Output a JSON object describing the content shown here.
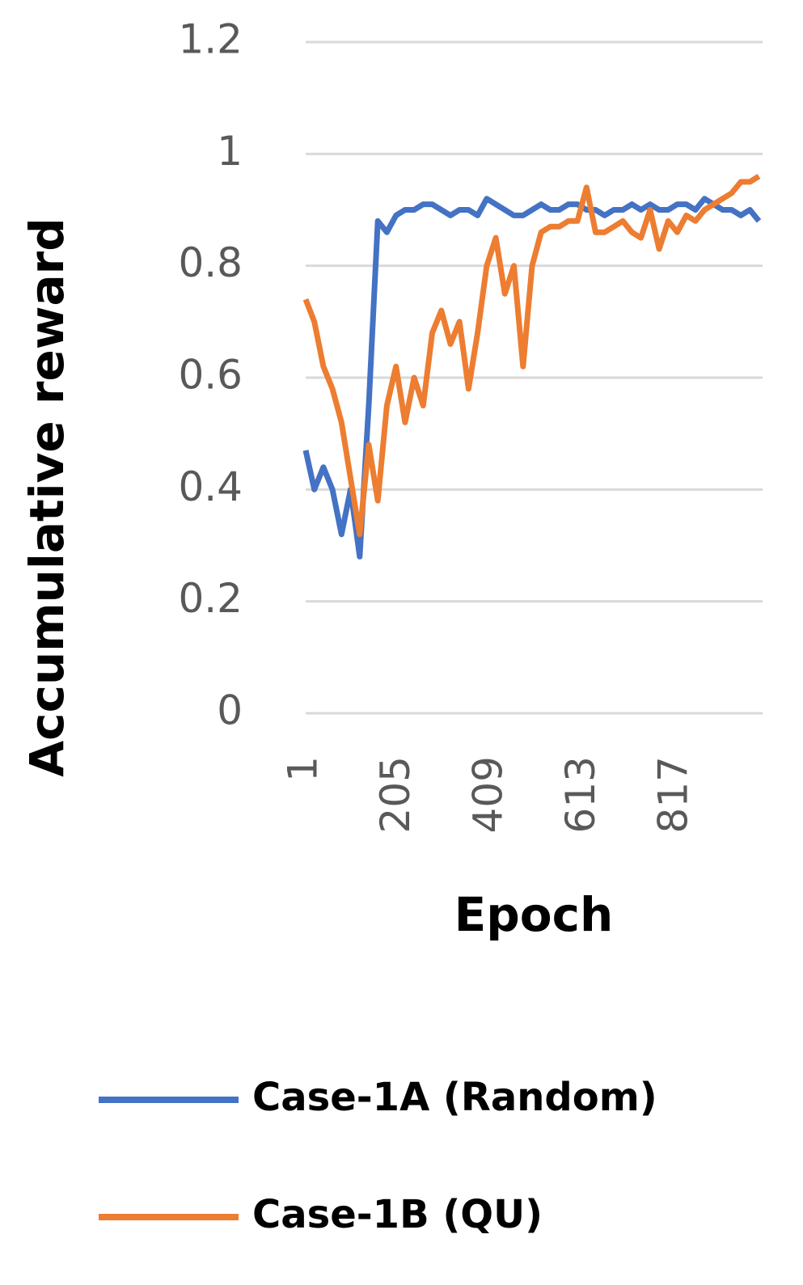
{
  "chart_data": {
    "type": "line",
    "x_label": "Epoch",
    "y_label": "Accumulative reward",
    "x": [
      1,
      20,
      40,
      60,
      80,
      100,
      120,
      140,
      160,
      180,
      200,
      220,
      240,
      260,
      280,
      300,
      320,
      340,
      360,
      380,
      400,
      420,
      440,
      460,
      480,
      500,
      520,
      540,
      560,
      580,
      600,
      620,
      640,
      660,
      680,
      700,
      720,
      740,
      760,
      780,
      800,
      820,
      840,
      860,
      880,
      900,
      920,
      940,
      960,
      980,
      1000
    ],
    "series": [
      {
        "name": "Case-1A (Random)",
        "color": "#4472c4",
        "values": [
          0.47,
          0.4,
          0.44,
          0.4,
          0.32,
          0.4,
          0.28,
          0.55,
          0.88,
          0.86,
          0.89,
          0.9,
          0.9,
          0.91,
          0.91,
          0.9,
          0.89,
          0.9,
          0.9,
          0.89,
          0.92,
          0.91,
          0.9,
          0.89,
          0.89,
          0.9,
          0.91,
          0.9,
          0.9,
          0.91,
          0.91,
          0.9,
          0.9,
          0.89,
          0.9,
          0.9,
          0.91,
          0.9,
          0.91,
          0.9,
          0.9,
          0.91,
          0.91,
          0.9,
          0.92,
          0.91,
          0.9,
          0.9,
          0.89,
          0.9,
          0.88
        ]
      },
      {
        "name": "Case-1B (QU)",
        "color": "#ed7d31",
        "values": [
          0.74,
          0.7,
          0.62,
          0.58,
          0.52,
          0.42,
          0.32,
          0.48,
          0.38,
          0.55,
          0.62,
          0.52,
          0.6,
          0.55,
          0.68,
          0.72,
          0.66,
          0.7,
          0.58,
          0.68,
          0.8,
          0.85,
          0.75,
          0.8,
          0.62,
          0.8,
          0.86,
          0.87,
          0.87,
          0.88,
          0.88,
          0.94,
          0.86,
          0.86,
          0.87,
          0.88,
          0.86,
          0.85,
          0.9,
          0.83,
          0.88,
          0.86,
          0.89,
          0.88,
          0.9,
          0.91,
          0.92,
          0.93,
          0.95,
          0.95,
          0.96
        ]
      }
    ],
    "xlim": [
      1,
      1008
    ],
    "xticks": [
      1,
      205,
      409,
      613,
      817
    ],
    "ylim": [
      0,
      1.2
    ],
    "yticks": [
      0,
      0.2,
      0.4,
      0.6,
      0.8,
      1,
      1.2
    ],
    "grid": true,
    "legend": "bottom"
  }
}
